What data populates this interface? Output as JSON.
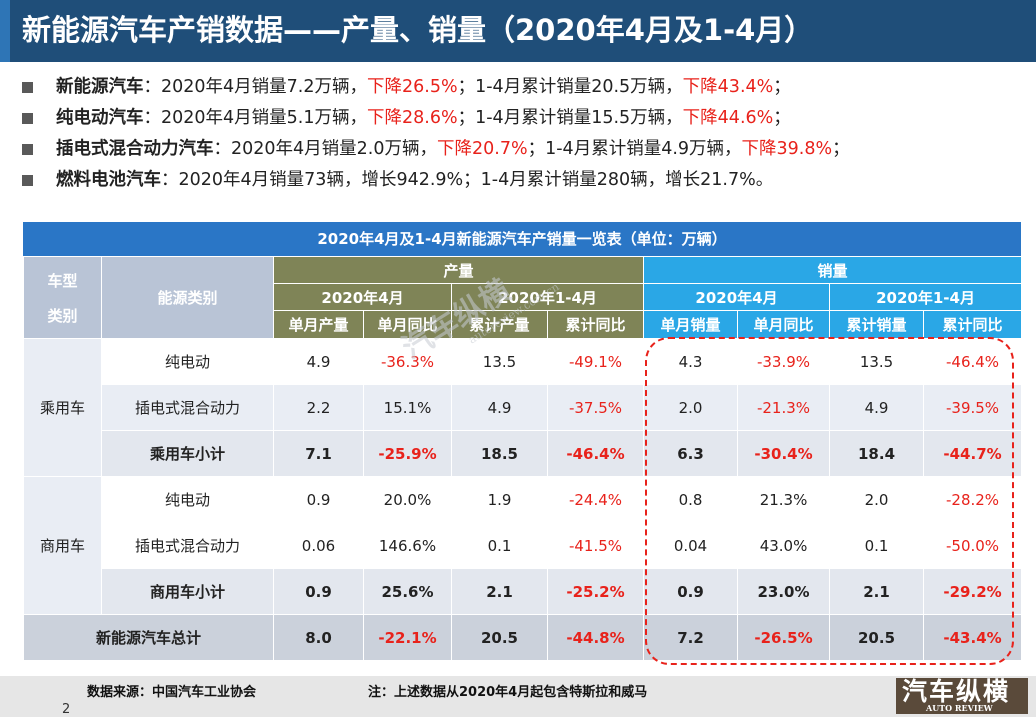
{
  "title": "新能源汽车产销数据——产量、销量（2020年4月及1-4月）",
  "bullets": [
    {
      "head": "新能源汽车",
      "t1": "：2020年4月销量7.2万辆，",
      "r1": "下降26.5%",
      "t2": "；1-4月累计销量20.5万辆，",
      "r2": "下降43.4%",
      "t3": "；"
    },
    {
      "head": "纯电动汽车",
      "t1": "：2020年4月销量5.1万辆，",
      "r1": "下降28.6%",
      "t2": "；1-4月累计销量15.5万辆，",
      "r2": "下降44.6%",
      "t3": "；"
    },
    {
      "head": "插电式混合动力汽车",
      "t1": "：2020年4月销量2.0万辆，",
      "r1": "下降20.7%",
      "t2": "；1-4月累计销量4.9万辆，",
      "r2": "下降39.8%",
      "t3": "；"
    },
    {
      "head": "燃料电池汽车",
      "t1": "：2020年4月销量73辆，增长942.9%；1-4月累计销量280辆，增长21.7%。",
      "r1": "",
      "t2": "",
      "r2": "",
      "t3": ""
    }
  ],
  "table": {
    "title": "2020年4月及1-4月新能源汽车产销量一览表（单位：万辆）",
    "header": {
      "vehicle_type": "车型",
      "vehicle_type2": "类别",
      "energy_type": "能源类别",
      "production": "产量",
      "sales": "销量",
      "apr": "2020年4月",
      "jan_apr": "2020年1-4月",
      "cols": [
        "单月产量",
        "单月同比",
        "累计产量",
        "累计同比",
        "单月销量",
        "单月同比",
        "累计销量",
        "累计同比"
      ]
    },
    "categories": [
      "乘用车",
      "商用车"
    ],
    "rows": [
      {
        "label": "纯电动",
        "values": [
          "4.9",
          "-36.3%",
          "13.5",
          "-49.1%",
          "4.3",
          "-33.9%",
          "13.5",
          "-46.4%"
        ]
      },
      {
        "label": "插电式混合动力",
        "values": [
          "2.2",
          "15.1%",
          "4.9",
          "-37.5%",
          "2.0",
          "-21.3%",
          "4.9",
          "-39.5%"
        ]
      },
      {
        "label": "乘用车小计",
        "values": [
          "7.1",
          "-25.9%",
          "18.5",
          "-46.4%",
          "6.3",
          "-30.4%",
          "18.4",
          "-44.7%"
        ]
      },
      {
        "label": "纯电动",
        "values": [
          "0.9",
          "20.0%",
          "1.9",
          "-24.4%",
          "0.8",
          "21.3%",
          "2.0",
          "-28.2%"
        ]
      },
      {
        "label": "插电式混合动力",
        "values": [
          "0.06",
          "146.6%",
          "0.1",
          "-41.5%",
          "0.04",
          "43.0%",
          "0.1",
          "-50.0%"
        ]
      },
      {
        "label": "商用车小计",
        "values": [
          "0.9",
          "25.6%",
          "2.1",
          "-25.2%",
          "0.9",
          "23.0%",
          "2.1",
          "-29.2%"
        ]
      }
    ],
    "total": {
      "label": "新能源汽车总计",
      "values": [
        "8.0",
        "-22.1%",
        "20.5",
        "-44.8%",
        "7.2",
        "-26.5%",
        "20.5",
        "-43.4%"
      ]
    }
  },
  "footer": {
    "source": "数据来源：中国汽车工业协会",
    "note": "注：上述数据从2020年4月起包含特斯拉和威马",
    "page": "2"
  },
  "logo": {
    "cn": "汽车纵横",
    "en": "AUTO REVIEW"
  },
  "watermark": {
    "cn": "汽车纵横",
    "url": "autoreview.com.cn"
  },
  "colors": {
    "title_bg": "#1f4e79",
    "table_title_bg": "#2a76c6",
    "production_header": "#7f8457",
    "sales_header": "#2aa7e6",
    "negative": "#e8221b"
  }
}
